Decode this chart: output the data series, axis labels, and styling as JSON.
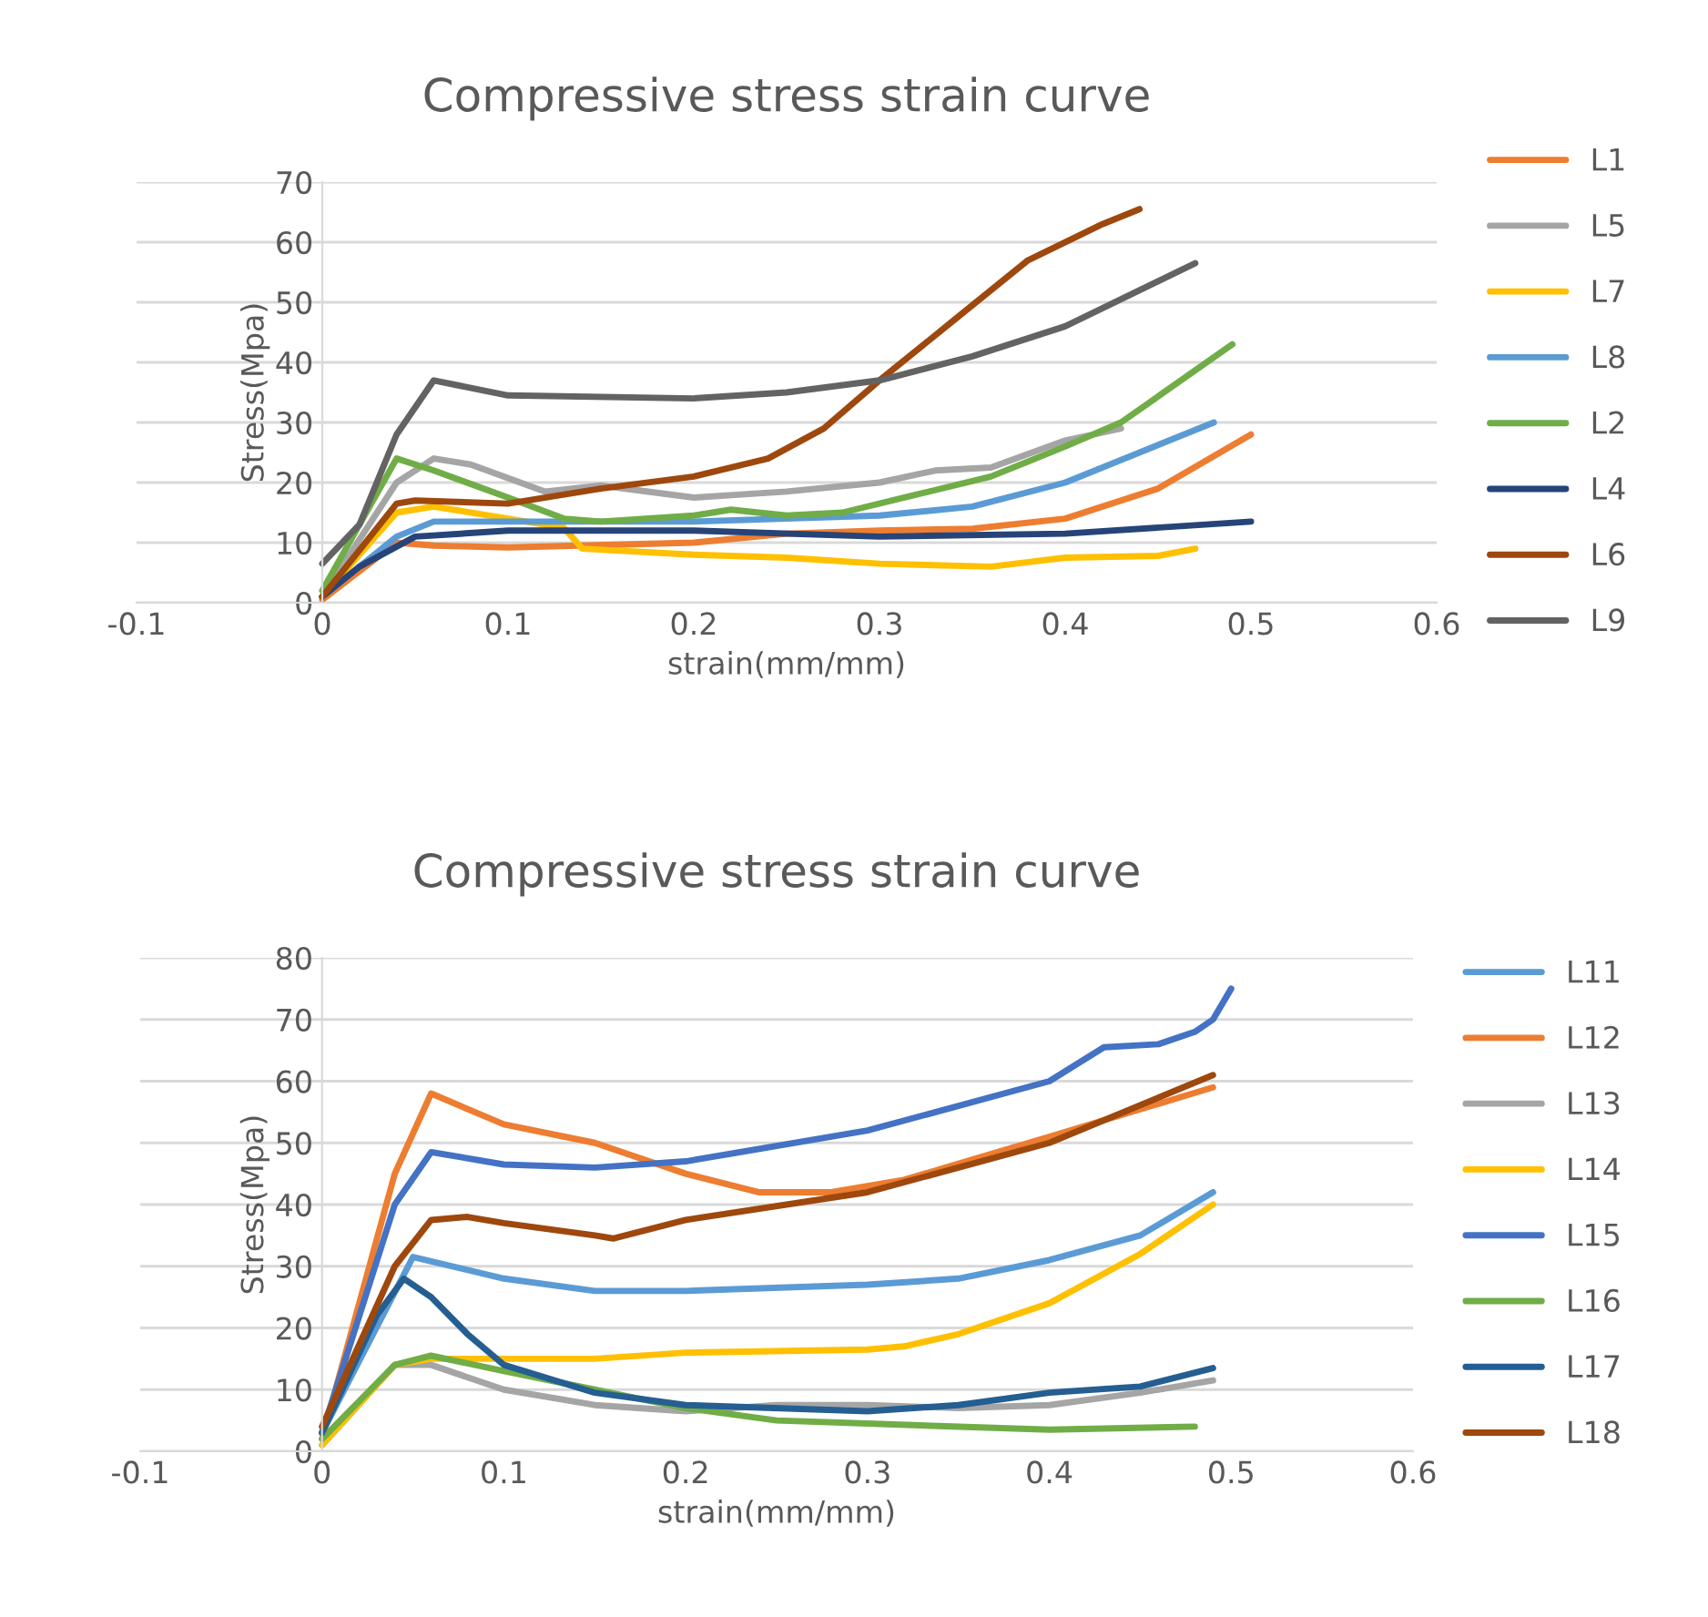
{
  "chart_data": [
    {
      "type": "line",
      "title": "Compressive stress strain curve",
      "xlabel": "strain(mm/mm)",
      "ylabel": "Stress(Mpa)",
      "xlim": [
        -0.1,
        0.6
      ],
      "xticks": [
        {
          "value": -0.1,
          "label": "-0.1"
        },
        0,
        0.1,
        0.2,
        0.3,
        0.4,
        0.5,
        0.6
      ],
      "ylim": [
        0,
        70
      ],
      "yticks": [
        0,
        10,
        20,
        30,
        40,
        50,
        60,
        70
      ],
      "grid": "y",
      "legend": "right",
      "marker": "none",
      "line_style": "solid",
      "series": [
        {
          "name": "L1",
          "color": "#ed7d31",
          "x": [
            0,
            0.04,
            0.06,
            0.1,
            0.2,
            0.25,
            0.3,
            0.35,
            0.4,
            0.45,
            0.5
          ],
          "values": [
            0.5,
            10,
            9.5,
            9.2,
            10,
            11.5,
            12,
            12.3,
            14,
            19,
            28
          ]
        },
        {
          "name": "L5",
          "color": "#a5a5a5",
          "x": [
            0,
            0.04,
            0.06,
            0.08,
            0.12,
            0.15,
            0.2,
            0.25,
            0.3,
            0.33,
            0.36,
            0.4,
            0.43
          ],
          "values": [
            1,
            20,
            24,
            23,
            18.5,
            19.5,
            17.5,
            18.5,
            20,
            22,
            22.5,
            27,
            29
          ]
        },
        {
          "name": "L7",
          "color": "#ffc000",
          "x": [
            0,
            0.04,
            0.06,
            0.1,
            0.13,
            0.14,
            0.2,
            0.25,
            0.3,
            0.36,
            0.4,
            0.45,
            0.47
          ],
          "values": [
            1,
            15,
            16,
            14,
            12.5,
            9,
            8,
            7.5,
            6.5,
            6,
            7.5,
            7.8,
            9
          ]
        },
        {
          "name": "L8",
          "color": "#5b9bd5",
          "x": [
            0,
            0.04,
            0.06,
            0.1,
            0.2,
            0.3,
            0.35,
            0.4,
            0.48
          ],
          "values": [
            1,
            11,
            13.5,
            13.5,
            13.5,
            14.5,
            16,
            20,
            30
          ]
        },
        {
          "name": "L2",
          "color": "#70ad47",
          "x": [
            0,
            0.04,
            0.06,
            0.1,
            0.13,
            0.15,
            0.2,
            0.22,
            0.25,
            0.28,
            0.32,
            0.36,
            0.4,
            0.43,
            0.49
          ],
          "values": [
            2,
            24,
            22,
            17.5,
            14,
            13.5,
            14.5,
            15.5,
            14.5,
            15,
            18,
            21,
            26,
            30,
            43
          ]
        },
        {
          "name": "L4",
          "color": "#264478",
          "x": [
            0,
            0.02,
            0.05,
            0.1,
            0.2,
            0.3,
            0.4,
            0.5
          ],
          "values": [
            1,
            6,
            11,
            12,
            12,
            11,
            11.5,
            13.5
          ]
        },
        {
          "name": "L6",
          "color": "#9e480e",
          "x": [
            0,
            0.04,
            0.05,
            0.1,
            0.15,
            0.2,
            0.24,
            0.27,
            0.3,
            0.34,
            0.38,
            0.42,
            0.44
          ],
          "values": [
            1,
            16.5,
            17,
            16.5,
            19,
            21,
            24,
            29,
            37,
            47,
            57,
            63,
            65.5
          ]
        },
        {
          "name": "L9",
          "color": "#636363",
          "x": [
            0,
            0.02,
            0.04,
            0.06,
            0.1,
            0.2,
            0.25,
            0.3,
            0.35,
            0.4,
            0.47
          ],
          "values": [
            6.5,
            13,
            28,
            37,
            34.5,
            34,
            35,
            37,
            41,
            46,
            56.5
          ]
        }
      ]
    },
    {
      "type": "line",
      "title": "Compressive stress strain curve",
      "xlabel": "strain(mm/mm)",
      "ylabel": "Stress(Mpa)",
      "xlim": [
        -0.1,
        0.6
      ],
      "xticks": [
        {
          "value": -0.1,
          "label": "-0.1"
        },
        0,
        0.1,
        0.2,
        0.3,
        0.4,
        0.5,
        0.6
      ],
      "ylim": [
        0,
        80
      ],
      "yticks": [
        0,
        10,
        20,
        30,
        40,
        50,
        60,
        70,
        80
      ],
      "grid": "y",
      "legend": "right",
      "marker": "none",
      "line_style": "solid",
      "series": [
        {
          "name": "L11",
          "color": "#5b9bd5",
          "x": [
            0,
            0.05,
            0.1,
            0.15,
            0.2,
            0.3,
            0.35,
            0.4,
            0.45,
            0.49
          ],
          "values": [
            3,
            31.5,
            28,
            26,
            26,
            27,
            28,
            31,
            35,
            42
          ]
        },
        {
          "name": "L12",
          "color": "#ed7d31",
          "x": [
            0,
            0.04,
            0.06,
            0.1,
            0.15,
            0.2,
            0.24,
            0.28,
            0.32,
            0.4,
            0.49
          ],
          "values": [
            2,
            45,
            58,
            53,
            50,
            45,
            42,
            42,
            44,
            51,
            59
          ]
        },
        {
          "name": "L13",
          "color": "#a5a5a5",
          "x": [
            0,
            0.04,
            0.06,
            0.1,
            0.15,
            0.2,
            0.25,
            0.3,
            0.35,
            0.4,
            0.45,
            0.49
          ],
          "values": [
            1,
            14,
            14,
            10,
            7.5,
            6.5,
            7.5,
            7.5,
            7,
            7.5,
            9.5,
            11.5
          ]
        },
        {
          "name": "L14",
          "color": "#ffc000",
          "x": [
            0,
            0.04,
            0.06,
            0.1,
            0.15,
            0.2,
            0.3,
            0.32,
            0.35,
            0.4,
            0.45,
            0.49
          ],
          "values": [
            1,
            14,
            15,
            15,
            15,
            16,
            16.5,
            17,
            19,
            24,
            32,
            40
          ]
        },
        {
          "name": "L15",
          "color": "#4472c4",
          "x": [
            0,
            0.04,
            0.06,
            0.1,
            0.15,
            0.2,
            0.3,
            0.4,
            0.43,
            0.46,
            0.48,
            0.49,
            0.5
          ],
          "values": [
            3,
            40,
            48.5,
            46.5,
            46,
            47,
            52,
            60,
            65.5,
            66,
            68,
            70,
            75
          ]
        },
        {
          "name": "L16",
          "color": "#70ad47",
          "x": [
            0,
            0.04,
            0.06,
            0.1,
            0.15,
            0.2,
            0.25,
            0.3,
            0.4,
            0.48
          ],
          "values": [
            2,
            14,
            15.5,
            13,
            10,
            7,
            5,
            4.5,
            3.5,
            4
          ]
        },
        {
          "name": "L17",
          "color": "#255e91",
          "x": [
            0,
            0.03,
            0.045,
            0.06,
            0.08,
            0.1,
            0.15,
            0.2,
            0.3,
            0.35,
            0.4,
            0.45,
            0.49
          ],
          "values": [
            3,
            22,
            28,
            25,
            19,
            14,
            9.5,
            7.5,
            6.5,
            7.5,
            9.5,
            10.5,
            13.5
          ]
        },
        {
          "name": "L18",
          "color": "#9e480e",
          "x": [
            0,
            0.04,
            0.06,
            0.08,
            0.1,
            0.15,
            0.16,
            0.2,
            0.3,
            0.4,
            0.49
          ],
          "values": [
            4,
            30,
            37.5,
            38,
            37,
            35,
            34.5,
            37.5,
            42,
            50,
            61
          ]
        }
      ]
    }
  ]
}
